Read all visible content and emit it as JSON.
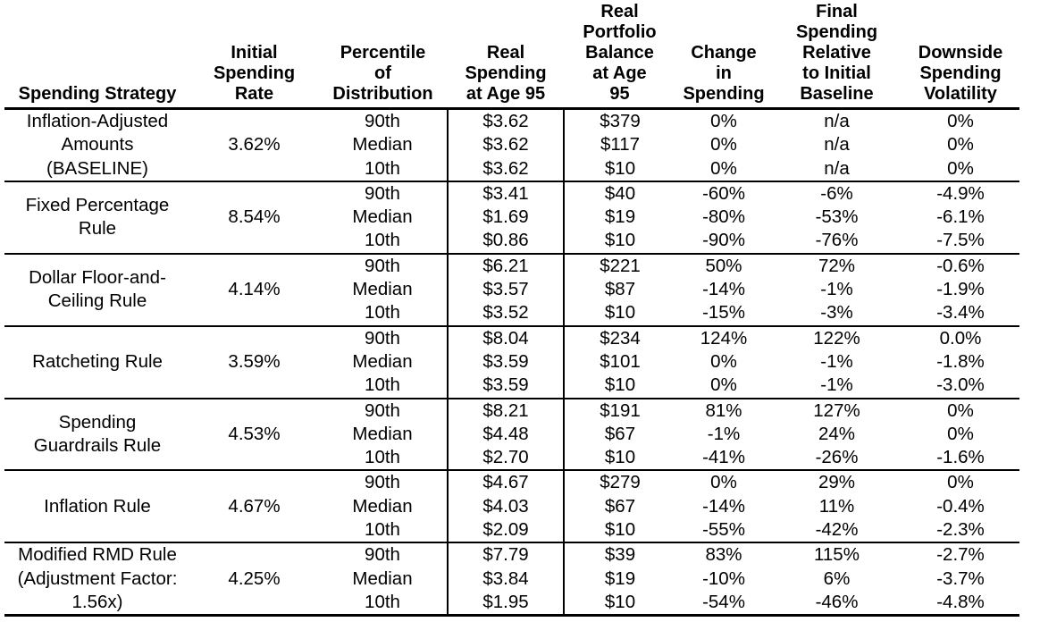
{
  "table": {
    "headers": [
      "Spending Strategy",
      "Initial\nSpending\nRate",
      "Percentile\nof\nDistribution",
      "Real\nSpending\nat Age 95",
      "Real\nPortfolio\nBalance\nat Age\n95",
      "Change\nin\nSpending",
      "Final\nSpending\nRelative\nto Initial\nBaseline",
      "Downside\nSpending\nVolatility"
    ],
    "sections": [
      {
        "strategy": "Inflation-Adjusted\nAmounts\n(BASELINE)",
        "initial_rate": "3.62%",
        "rows": [
          {
            "percentile": "90th",
            "real_spending": "$3.62",
            "portfolio_balance": "$379",
            "change_in_spending": "0%",
            "final_vs_baseline": "n/a",
            "downside_volatility": "0%"
          },
          {
            "percentile": "Median",
            "real_spending": "$3.62",
            "portfolio_balance": "$117",
            "change_in_spending": "0%",
            "final_vs_baseline": "n/a",
            "downside_volatility": "0%"
          },
          {
            "percentile": "10th",
            "real_spending": "$3.62",
            "portfolio_balance": "$10",
            "change_in_spending": "0%",
            "final_vs_baseline": "n/a",
            "downside_volatility": "0%"
          }
        ]
      },
      {
        "strategy": "Fixed Percentage\nRule",
        "initial_rate": "8.54%",
        "rows": [
          {
            "percentile": "90th",
            "real_spending": "$3.41",
            "portfolio_balance": "$40",
            "change_in_spending": "-60%",
            "final_vs_baseline": "-6%",
            "downside_volatility": "-4.9%"
          },
          {
            "percentile": "Median",
            "real_spending": "$1.69",
            "portfolio_balance": "$19",
            "change_in_spending": "-80%",
            "final_vs_baseline": "-53%",
            "downside_volatility": "-6.1%"
          },
          {
            "percentile": "10th",
            "real_spending": "$0.86",
            "portfolio_balance": "$10",
            "change_in_spending": "-90%",
            "final_vs_baseline": "-76%",
            "downside_volatility": "-7.5%"
          }
        ]
      },
      {
        "strategy": "Dollar Floor-and-\nCeiling Rule",
        "initial_rate": "4.14%",
        "rows": [
          {
            "percentile": "90th",
            "real_spending": "$6.21",
            "portfolio_balance": "$221",
            "change_in_spending": "50%",
            "final_vs_baseline": "72%",
            "downside_volatility": "-0.6%"
          },
          {
            "percentile": "Median",
            "real_spending": "$3.57",
            "portfolio_balance": "$87",
            "change_in_spending": "-14%",
            "final_vs_baseline": "-1%",
            "downside_volatility": "-1.9%"
          },
          {
            "percentile": "10th",
            "real_spending": "$3.52",
            "portfolio_balance": "$10",
            "change_in_spending": "-15%",
            "final_vs_baseline": "-3%",
            "downside_volatility": "-3.4%"
          }
        ]
      },
      {
        "strategy": "Ratcheting Rule",
        "initial_rate": "3.59%",
        "rows": [
          {
            "percentile": "90th",
            "real_spending": "$8.04",
            "portfolio_balance": "$234",
            "change_in_spending": "124%",
            "final_vs_baseline": "122%",
            "downside_volatility": "0.0%"
          },
          {
            "percentile": "Median",
            "real_spending": "$3.59",
            "portfolio_balance": "$101",
            "change_in_spending": "0%",
            "final_vs_baseline": "-1%",
            "downside_volatility": "-1.8%"
          },
          {
            "percentile": "10th",
            "real_spending": "$3.59",
            "portfolio_balance": "$10",
            "change_in_spending": "0%",
            "final_vs_baseline": "-1%",
            "downside_volatility": "-3.0%"
          }
        ]
      },
      {
        "strategy": "Spending\nGuardrails Rule",
        "initial_rate": "4.53%",
        "rows": [
          {
            "percentile": "90th",
            "real_spending": "$8.21",
            "portfolio_balance": "$191",
            "change_in_spending": "81%",
            "final_vs_baseline": "127%",
            "downside_volatility": "0%"
          },
          {
            "percentile": "Median",
            "real_spending": "$4.48",
            "portfolio_balance": "$67",
            "change_in_spending": "-1%",
            "final_vs_baseline": "24%",
            "downside_volatility": "0%"
          },
          {
            "percentile": "10th",
            "real_spending": "$2.70",
            "portfolio_balance": "$10",
            "change_in_spending": "-41%",
            "final_vs_baseline": "-26%",
            "downside_volatility": "-1.6%"
          }
        ]
      },
      {
        "strategy": "Inflation Rule",
        "initial_rate": "4.67%",
        "rows": [
          {
            "percentile": "90th",
            "real_spending": "$4.67",
            "portfolio_balance": "$279",
            "change_in_spending": "0%",
            "final_vs_baseline": "29%",
            "downside_volatility": "0%"
          },
          {
            "percentile": "Median",
            "real_spending": "$4.03",
            "portfolio_balance": "$67",
            "change_in_spending": "-14%",
            "final_vs_baseline": "11%",
            "downside_volatility": "-0.4%"
          },
          {
            "percentile": "10th",
            "real_spending": "$2.09",
            "portfolio_balance": "$10",
            "change_in_spending": "-55%",
            "final_vs_baseline": "-42%",
            "downside_volatility": "-2.3%"
          }
        ]
      },
      {
        "strategy": "Modified RMD Rule\n(Adjustment Factor:\n1.56x)",
        "initial_rate": "4.25%",
        "rows": [
          {
            "percentile": "90th",
            "real_spending": "$7.79",
            "portfolio_balance": "$39",
            "change_in_spending": "83%",
            "final_vs_baseline": "115%",
            "downside_volatility": "-2.7%"
          },
          {
            "percentile": "Median",
            "real_spending": "$3.84",
            "portfolio_balance": "$19",
            "change_in_spending": "-10%",
            "final_vs_baseline": "6%",
            "downside_volatility": "-3.7%"
          },
          {
            "percentile": "10th",
            "real_spending": "$1.95",
            "portfolio_balance": "$10",
            "change_in_spending": "-54%",
            "final_vs_baseline": "-46%",
            "downside_volatility": "-4.8%"
          }
        ]
      }
    ]
  }
}
